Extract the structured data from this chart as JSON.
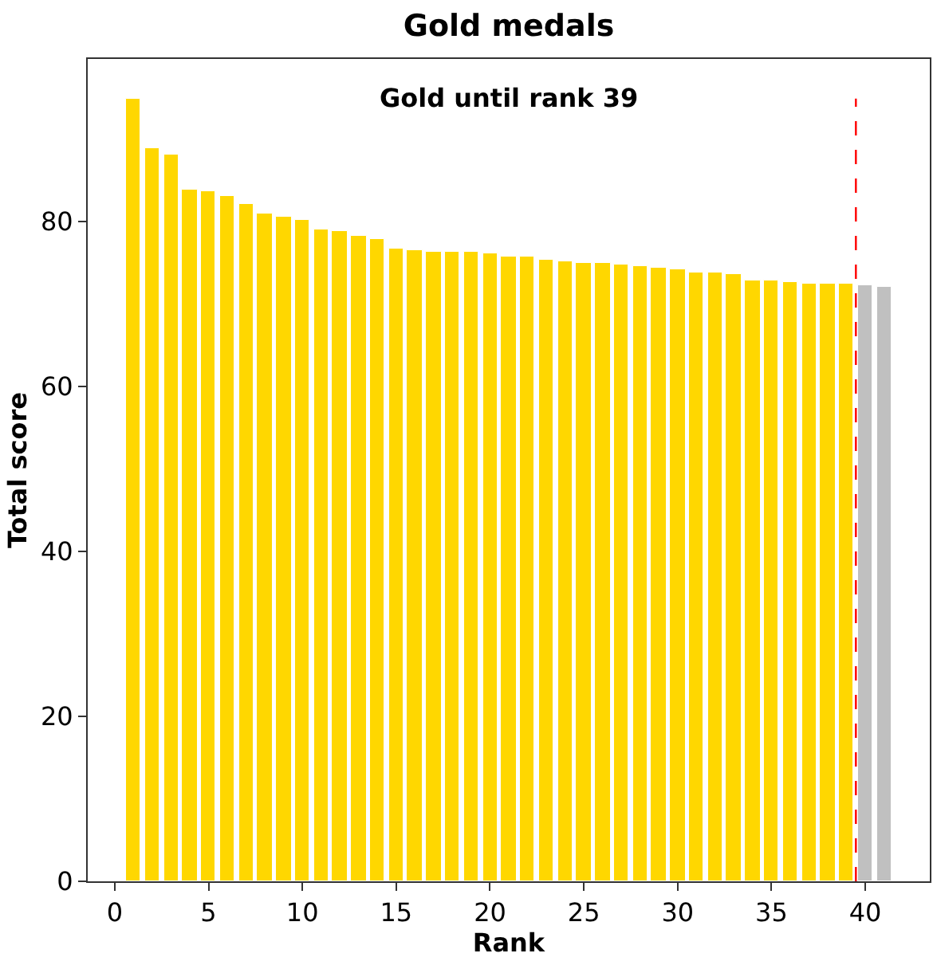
{
  "chart_data": {
    "type": "bar",
    "title": "Gold medals",
    "xlabel": "Rank",
    "ylabel": "Total score",
    "annotations": [
      "Gold until rank 39"
    ],
    "series": [
      {
        "color": "#ffd700",
        "x": [
          1,
          2,
          3,
          4,
          5,
          6,
          7,
          8,
          9,
          10,
          11,
          12,
          13,
          14,
          15,
          16,
          17,
          18,
          19,
          20,
          21,
          22,
          23,
          24,
          25,
          26,
          27,
          28,
          29,
          30,
          31,
          32,
          33,
          34,
          35,
          36,
          37,
          38,
          39
        ],
        "values": [
          94.9,
          88.8,
          88.1,
          83.9,
          83.7,
          83.0,
          82.2,
          80.9,
          80.5,
          80.2,
          79.0,
          78.8,
          78.3,
          77.9,
          76.7,
          76.6,
          76.4,
          76.4,
          76.4,
          76.2,
          75.8,
          75.8,
          75.3,
          75.2,
          74.9,
          74.9,
          74.8,
          74.5,
          74.3,
          74.1,
          73.9,
          73.9,
          73.7,
          72.9,
          72.8,
          72.6,
          72.5,
          72.5,
          72.4
        ]
      },
      {
        "color": "#c0c0c0",
        "x": [
          40,
          41
        ],
        "values": [
          72.2,
          72.0
        ]
      }
    ],
    "ref_lines": [
      {
        "axis": "x",
        "value": 39.5,
        "color": "#ff0000",
        "line_style": "dashed"
      }
    ],
    "xlim": [
      -1.44,
      43.44
    ],
    "xticks": [
      0,
      5,
      10,
      15,
      20,
      25,
      30,
      35,
      40
    ],
    "ylim": [
      0,
      99.7
    ],
    "yticks": [
      0,
      20,
      40,
      60,
      80
    ]
  }
}
